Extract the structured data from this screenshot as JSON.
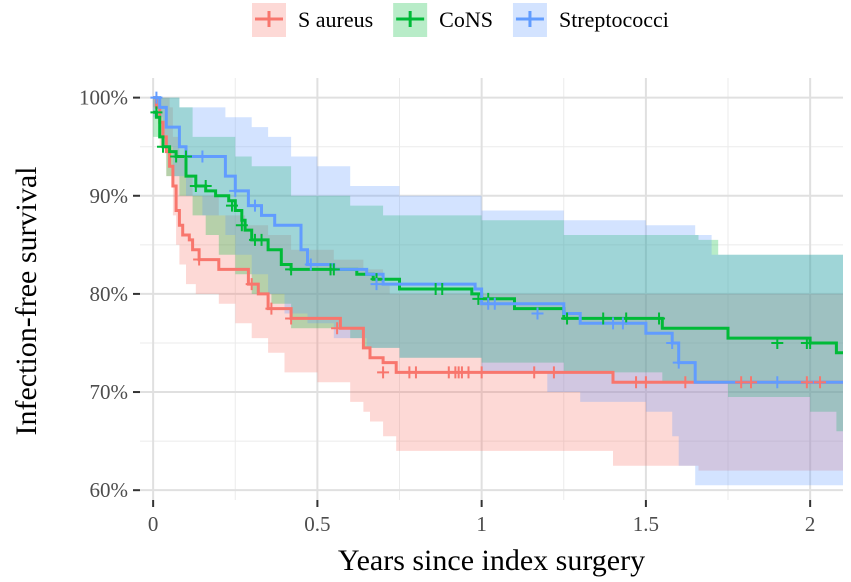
{
  "chart_data": {
    "type": "line",
    "subtype": "kaplan-meier step curves with confidence bands",
    "xlabel": "Years since index surgery",
    "ylabel": "Infection-free survival",
    "xlim": [
      -0.04,
      2.1
    ],
    "ylim": [
      0.59,
      1.02
    ],
    "x_ticks": [
      0,
      0.5,
      1,
      1.5,
      2
    ],
    "x_tick_labels": [
      "0",
      "0.5",
      "1",
      "1.5",
      "2"
    ],
    "y_ticks": [
      0.6,
      0.7,
      0.8,
      0.9,
      1.0
    ],
    "y_tick_labels": [
      "60%",
      "70%",
      "80%",
      "90%",
      "100%"
    ],
    "grid": true,
    "legend_position": "top",
    "series": [
      {
        "name": "S aureus",
        "color": "#F8766D",
        "steps": [
          [
            0,
            1.0
          ],
          [
            0.01,
            0.99
          ],
          [
            0.02,
            0.975
          ],
          [
            0.03,
            0.96
          ],
          [
            0.04,
            0.945
          ],
          [
            0.05,
            0.93
          ],
          [
            0.06,
            0.91
          ],
          [
            0.07,
            0.885
          ],
          [
            0.08,
            0.87
          ],
          [
            0.09,
            0.86
          ],
          [
            0.11,
            0.855
          ],
          [
            0.12,
            0.845
          ],
          [
            0.14,
            0.835
          ],
          [
            0.2,
            0.825
          ],
          [
            0.29,
            0.81
          ],
          [
            0.32,
            0.8
          ],
          [
            0.35,
            0.785
          ],
          [
            0.42,
            0.775
          ],
          [
            0.57,
            0.765
          ],
          [
            0.64,
            0.745
          ],
          [
            0.66,
            0.735
          ],
          [
            0.7,
            0.73
          ],
          [
            0.74,
            0.72
          ],
          [
            1.4,
            0.71
          ],
          [
            2.1,
            0.71
          ]
        ],
        "upper": [
          [
            0,
            1.0
          ],
          [
            0.05,
            0.99
          ],
          [
            0.06,
            0.96
          ],
          [
            0.08,
            0.94
          ],
          [
            0.1,
            0.92
          ],
          [
            0.12,
            0.9
          ],
          [
            0.2,
            0.88
          ],
          [
            0.28,
            0.87
          ],
          [
            0.35,
            0.86
          ],
          [
            0.42,
            0.845
          ],
          [
            0.55,
            0.835
          ],
          [
            0.64,
            0.825
          ],
          [
            0.7,
            0.81
          ],
          [
            0.72,
            0.8
          ],
          [
            1.3,
            0.8
          ],
          [
            2.1,
            0.8
          ]
        ],
        "lower": [
          [
            0,
            0.99
          ],
          [
            0.02,
            0.95
          ],
          [
            0.04,
            0.92
          ],
          [
            0.06,
            0.88
          ],
          [
            0.07,
            0.85
          ],
          [
            0.08,
            0.83
          ],
          [
            0.1,
            0.81
          ],
          [
            0.13,
            0.8
          ],
          [
            0.2,
            0.79
          ],
          [
            0.25,
            0.77
          ],
          [
            0.3,
            0.755
          ],
          [
            0.35,
            0.74
          ],
          [
            0.4,
            0.72
          ],
          [
            0.5,
            0.71
          ],
          [
            0.6,
            0.69
          ],
          [
            0.64,
            0.68
          ],
          [
            0.66,
            0.67
          ],
          [
            0.7,
            0.655
          ],
          [
            0.74,
            0.64
          ],
          [
            1.4,
            0.625
          ],
          [
            1.66,
            0.62
          ],
          [
            2.1,
            0.62
          ]
        ],
        "censored": [
          [
            0.14,
            0.835
          ],
          [
            0.3,
            0.81
          ],
          [
            0.36,
            0.785
          ],
          [
            0.42,
            0.775
          ],
          [
            0.56,
            0.765
          ],
          [
            0.7,
            0.72
          ],
          [
            0.78,
            0.72
          ],
          [
            0.8,
            0.72
          ],
          [
            0.9,
            0.72
          ],
          [
            0.92,
            0.72
          ],
          [
            0.93,
            0.72
          ],
          [
            0.94,
            0.72
          ],
          [
            0.96,
            0.72
          ],
          [
            1.0,
            0.72
          ],
          [
            1.16,
            0.72
          ],
          [
            1.22,
            0.72
          ],
          [
            1.47,
            0.71
          ],
          [
            1.5,
            0.71
          ],
          [
            1.62,
            0.71
          ],
          [
            1.79,
            0.71
          ],
          [
            1.82,
            0.71
          ],
          [
            1.99,
            0.71
          ],
          [
            2.03,
            0.71
          ]
        ]
      },
      {
        "name": "CoNS",
        "color": "#00BA38",
        "steps": [
          [
            0,
            0.985
          ],
          [
            0.01,
            0.98
          ],
          [
            0.02,
            0.96
          ],
          [
            0.03,
            0.95
          ],
          [
            0.05,
            0.945
          ],
          [
            0.07,
            0.94
          ],
          [
            0.1,
            0.92
          ],
          [
            0.13,
            0.91
          ],
          [
            0.16,
            0.905
          ],
          [
            0.19,
            0.9
          ],
          [
            0.23,
            0.895
          ],
          [
            0.25,
            0.885
          ],
          [
            0.27,
            0.875
          ],
          [
            0.28,
            0.865
          ],
          [
            0.3,
            0.855
          ],
          [
            0.35,
            0.845
          ],
          [
            0.39,
            0.83
          ],
          [
            0.42,
            0.825
          ],
          [
            0.62,
            0.82
          ],
          [
            0.67,
            0.815
          ],
          [
            0.75,
            0.805
          ],
          [
            0.97,
            0.8
          ],
          [
            1.0,
            0.795
          ],
          [
            1.1,
            0.785
          ],
          [
            1.25,
            0.775
          ],
          [
            1.55,
            0.765
          ],
          [
            1.75,
            0.755
          ],
          [
            2.0,
            0.75
          ],
          [
            2.08,
            0.74
          ],
          [
            2.1,
            0.74
          ]
        ],
        "upper": [
          [
            0,
            1.0
          ],
          [
            0.08,
            0.99
          ],
          [
            0.12,
            0.96
          ],
          [
            0.25,
            0.94
          ],
          [
            0.3,
            0.93
          ],
          [
            0.42,
            0.9
          ],
          [
            0.6,
            0.89
          ],
          [
            0.7,
            0.88
          ],
          [
            1.0,
            0.875
          ],
          [
            1.25,
            0.86
          ],
          [
            1.66,
            0.855
          ],
          [
            1.72,
            0.84
          ],
          [
            2.1,
            0.84
          ]
        ],
        "lower": [
          [
            0,
            0.96
          ],
          [
            0.04,
            0.92
          ],
          [
            0.08,
            0.9
          ],
          [
            0.12,
            0.88
          ],
          [
            0.16,
            0.86
          ],
          [
            0.2,
            0.84
          ],
          [
            0.25,
            0.82
          ],
          [
            0.3,
            0.8
          ],
          [
            0.36,
            0.79
          ],
          [
            0.42,
            0.765
          ],
          [
            0.6,
            0.755
          ],
          [
            0.64,
            0.745
          ],
          [
            0.75,
            0.735
          ],
          [
            1.0,
            0.73
          ],
          [
            1.25,
            0.72
          ],
          [
            1.55,
            0.71
          ],
          [
            1.75,
            0.695
          ],
          [
            2.0,
            0.68
          ],
          [
            2.08,
            0.66
          ],
          [
            2.1,
            0.66
          ]
        ],
        "censored": [
          [
            0.01,
            0.985
          ],
          [
            0.03,
            0.95
          ],
          [
            0.07,
            0.94
          ],
          [
            0.1,
            0.94
          ],
          [
            0.13,
            0.91
          ],
          [
            0.16,
            0.91
          ],
          [
            0.24,
            0.89
          ],
          [
            0.27,
            0.87
          ],
          [
            0.31,
            0.855
          ],
          [
            0.33,
            0.855
          ],
          [
            0.42,
            0.825
          ],
          [
            0.54,
            0.825
          ],
          [
            0.55,
            0.825
          ],
          [
            0.68,
            0.815
          ],
          [
            0.86,
            0.805
          ],
          [
            0.88,
            0.805
          ],
          [
            0.99,
            0.795
          ],
          [
            1.02,
            0.795
          ],
          [
            1.26,
            0.775
          ],
          [
            1.37,
            0.775
          ],
          [
            1.44,
            0.775
          ],
          [
            1.54,
            0.775
          ],
          [
            1.9,
            0.75
          ],
          [
            1.99,
            0.75
          ],
          [
            2.0,
            0.75
          ]
        ]
      },
      {
        "name": "Streptococci",
        "color": "#619CFF",
        "steps": [
          [
            0,
            1.0
          ],
          [
            0.02,
            0.99
          ],
          [
            0.04,
            0.97
          ],
          [
            0.08,
            0.95
          ],
          [
            0.1,
            0.94
          ],
          [
            0.22,
            0.92
          ],
          [
            0.25,
            0.905
          ],
          [
            0.29,
            0.89
          ],
          [
            0.33,
            0.88
          ],
          [
            0.37,
            0.87
          ],
          [
            0.45,
            0.845
          ],
          [
            0.47,
            0.83
          ],
          [
            0.55,
            0.825
          ],
          [
            0.65,
            0.82
          ],
          [
            0.7,
            0.81
          ],
          [
            0.98,
            0.805
          ],
          [
            1.0,
            0.79
          ],
          [
            1.25,
            0.78
          ],
          [
            1.3,
            0.77
          ],
          [
            1.5,
            0.76
          ],
          [
            1.58,
            0.75
          ],
          [
            1.6,
            0.73
          ],
          [
            1.65,
            0.71
          ],
          [
            2.1,
            0.71
          ]
        ],
        "upper": [
          [
            0,
            1.0
          ],
          [
            0.08,
            0.99
          ],
          [
            0.2,
            0.99
          ],
          [
            0.22,
            0.98
          ],
          [
            0.3,
            0.97
          ],
          [
            0.35,
            0.96
          ],
          [
            0.42,
            0.94
          ],
          [
            0.5,
            0.93
          ],
          [
            0.6,
            0.91
          ],
          [
            0.75,
            0.9
          ],
          [
            1.0,
            0.885
          ],
          [
            1.25,
            0.875
          ],
          [
            1.5,
            0.87
          ],
          [
            1.65,
            0.86
          ],
          [
            1.7,
            0.84
          ],
          [
            2.1,
            0.84
          ]
        ],
        "lower": [
          [
            0,
            0.98
          ],
          [
            0.03,
            0.95
          ],
          [
            0.06,
            0.92
          ],
          [
            0.1,
            0.9
          ],
          [
            0.15,
            0.88
          ],
          [
            0.22,
            0.86
          ],
          [
            0.25,
            0.84
          ],
          [
            0.3,
            0.82
          ],
          [
            0.35,
            0.8
          ],
          [
            0.4,
            0.78
          ],
          [
            0.47,
            0.77
          ],
          [
            0.55,
            0.755
          ],
          [
            0.65,
            0.745
          ],
          [
            0.75,
            0.735
          ],
          [
            1.0,
            0.72
          ],
          [
            1.2,
            0.7
          ],
          [
            1.3,
            0.69
          ],
          [
            1.5,
            0.68
          ],
          [
            1.58,
            0.655
          ],
          [
            1.6,
            0.625
          ],
          [
            1.65,
            0.605
          ],
          [
            2.1,
            0.605
          ]
        ],
        "censored": [
          [
            0.01,
            1.0
          ],
          [
            0.15,
            0.94
          ],
          [
            0.25,
            0.905
          ],
          [
            0.31,
            0.89
          ],
          [
            0.48,
            0.83
          ],
          [
            0.68,
            0.81
          ],
          [
            1.02,
            0.79
          ],
          [
            1.04,
            0.79
          ],
          [
            1.17,
            0.78
          ],
          [
            1.4,
            0.77
          ],
          [
            1.43,
            0.77
          ],
          [
            1.58,
            0.75
          ],
          [
            1.6,
            0.73
          ],
          [
            1.9,
            0.71
          ]
        ]
      }
    ]
  }
}
